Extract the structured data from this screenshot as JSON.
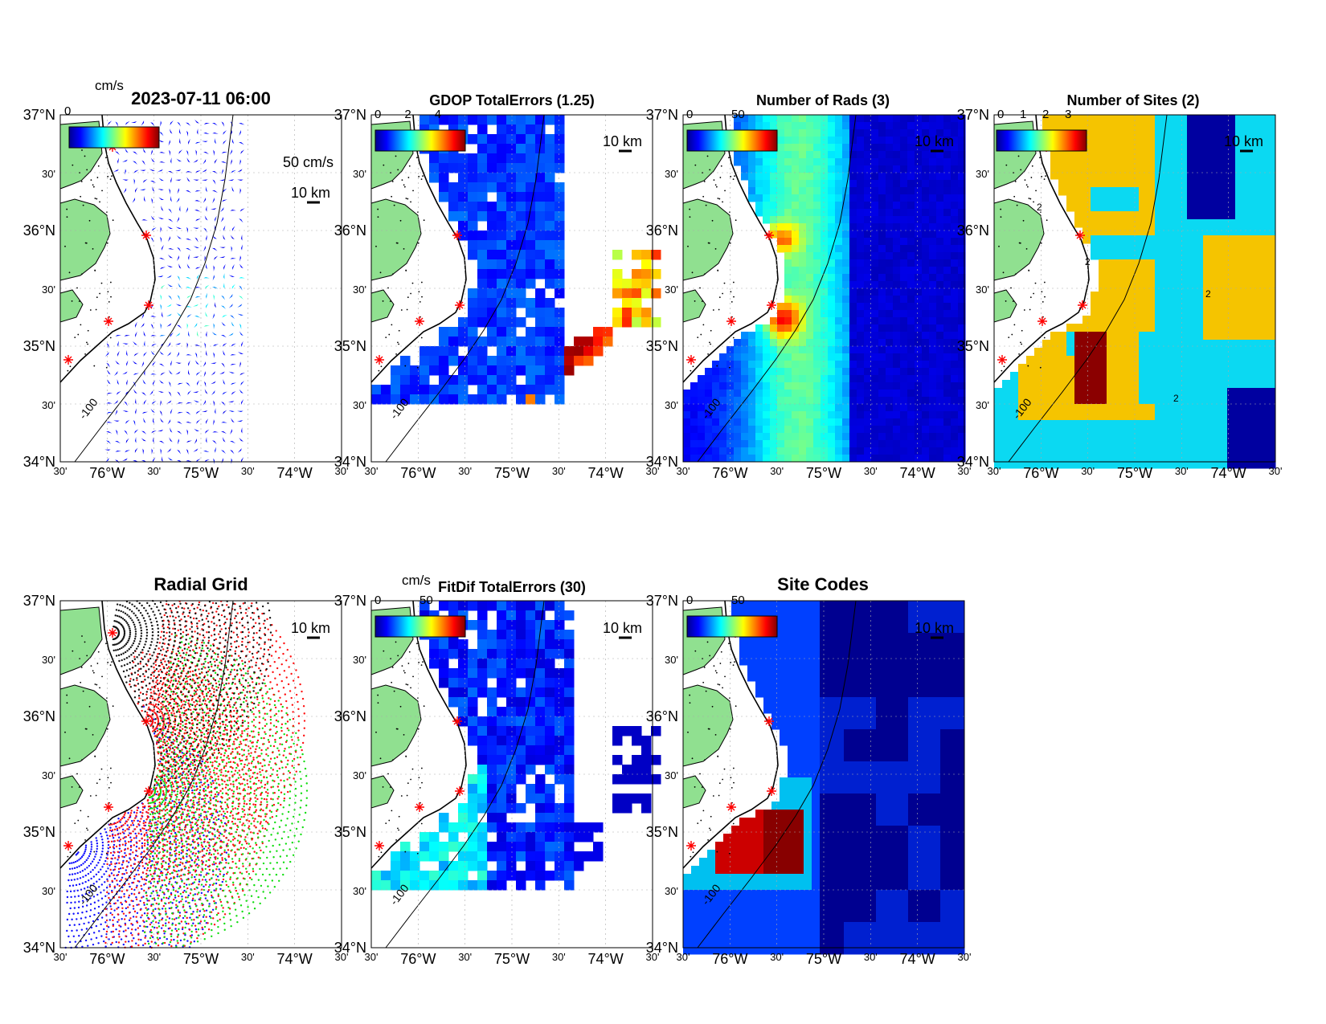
{
  "figure": {
    "colors": {
      "land": "#90e090",
      "coast": "#000000",
      "grid": "#aaaaaa",
      "site_marker": "#ff0000"
    },
    "ticks": {
      "lat_labels": [
        "37°N",
        "30'",
        "36°N",
        "30'",
        "35°N",
        "30'",
        "34°N"
      ],
      "lon_labels": [
        "30'",
        "76°W",
        "30'",
        "75°W",
        "30'",
        "74°W",
        "30'"
      ]
    },
    "scalebar_label": "10 km",
    "depth_contour_label": "-100"
  },
  "panels": [
    {
      "id": "currents",
      "title": "2023-07-11 06:00",
      "colorbar": {
        "unit": "cm/s",
        "ticks": []
      },
      "reference_vector_label": "50 cm/s",
      "overlapped_text": "0"
    },
    {
      "id": "gdop",
      "title": "GDOP TotalErrors (1.25)",
      "colorbar": {
        "unit": "",
        "ticks": [
          "0",
          "2",
          "4"
        ]
      }
    },
    {
      "id": "nrads",
      "title": "Number of Rads (3)",
      "colorbar": {
        "unit": "",
        "ticks": [
          "0",
          "50"
        ]
      }
    },
    {
      "id": "nsites",
      "title": "Number of Sites (2)",
      "colorbar": {
        "unit": "",
        "ticks": [
          "0",
          "1",
          "2",
          "3"
        ]
      },
      "contour_label": "2"
    },
    {
      "id": "radgrid",
      "title": "Radial Grid",
      "site_colors": [
        "#1010ff",
        "#ff1010",
        "#10dd10",
        "#ff1010",
        "#111111"
      ]
    },
    {
      "id": "fitdif",
      "title": "FitDif TotalErrors (30)",
      "colorbar": {
        "unit": "cm/s",
        "ticks": [
          "0",
          "50"
        ]
      }
    },
    {
      "id": "sitecodes",
      "title": "Site Codes",
      "colorbar": {
        "unit": "",
        "ticks": [
          "0",
          "50"
        ]
      }
    }
  ]
}
